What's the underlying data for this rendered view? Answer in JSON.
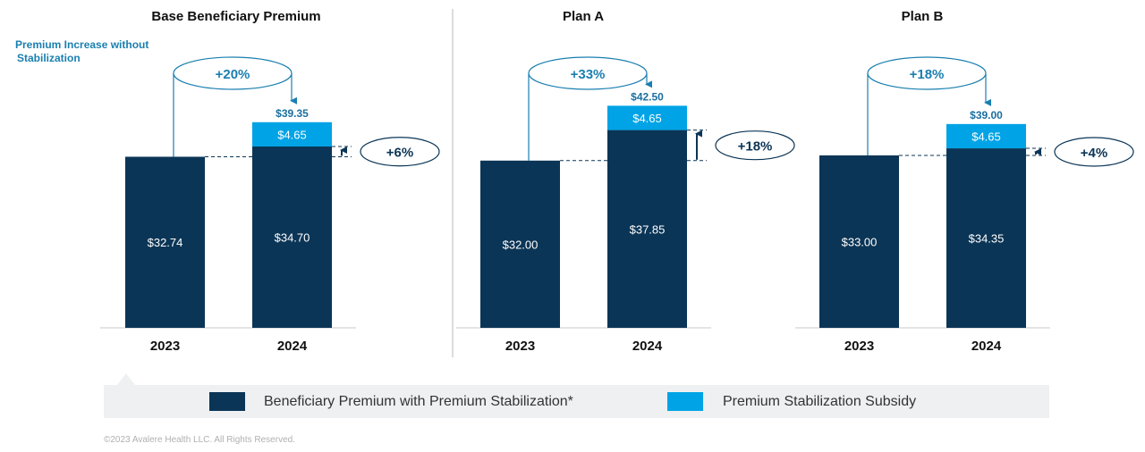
{
  "chart_data": {
    "type": "bar",
    "stacked": true,
    "annotation_label": "Premium Increase without Stabilization",
    "panels": [
      {
        "title": "Base Beneficiary Premium",
        "categories": [
          "2023",
          "2024"
        ],
        "series": [
          {
            "name": "Beneficiary Premium with Premium Stabilization*",
            "values": [
              32.74,
              34.7
            ],
            "labels": [
              "$32.74",
              "$34.70"
            ]
          },
          {
            "name": "Premium Stabilization Subsidy",
            "values": [
              0,
              4.65
            ],
            "labels": [
              "",
              "$4.65"
            ]
          }
        ],
        "total_label": "$39.35",
        "increase_without_stabilization": "+20%",
        "increase_with_stabilization": "+6%"
      },
      {
        "title": "Plan A",
        "categories": [
          "2023",
          "2024"
        ],
        "series": [
          {
            "name": "Beneficiary Premium with Premium Stabilization*",
            "values": [
              32.0,
              37.85
            ],
            "labels": [
              "$32.00",
              "$37.85"
            ]
          },
          {
            "name": "Premium Stabilization Subsidy",
            "values": [
              0,
              4.65
            ],
            "labels": [
              "",
              "$4.65"
            ]
          }
        ],
        "total_label": "$42.50",
        "increase_without_stabilization": "+33%",
        "increase_with_stabilization": "+18%"
      },
      {
        "title": "Plan B",
        "categories": [
          "2023",
          "2024"
        ],
        "series": [
          {
            "name": "Beneficiary Premium with Premium Stabilization*",
            "values": [
              33.0,
              34.35
            ],
            "labels": [
              "$33.00",
              "$34.35"
            ]
          },
          {
            "name": "Premium Stabilization Subsidy",
            "values": [
              0,
              4.65
            ],
            "labels": [
              "",
              "$4.65"
            ]
          }
        ],
        "total_label": "$39.00",
        "increase_without_stabilization": "+18%",
        "increase_with_stabilization": "+4%"
      }
    ],
    "legend": [
      {
        "label": "Beneficiary Premium with Premium Stabilization*",
        "color": "#0b3556"
      },
      {
        "label": "Premium Stabilization Subsidy",
        "color": "#00a3e6"
      }
    ]
  },
  "colors": {
    "premium": "#0b3556",
    "subsidy": "#00a3e6",
    "accent": "#1a7fb0",
    "total_label": "#1a6fa0",
    "text_dark": "#111111"
  },
  "footer": {
    "copyright": "©2023 Avalere Health LLC. All Rights Reserved."
  }
}
